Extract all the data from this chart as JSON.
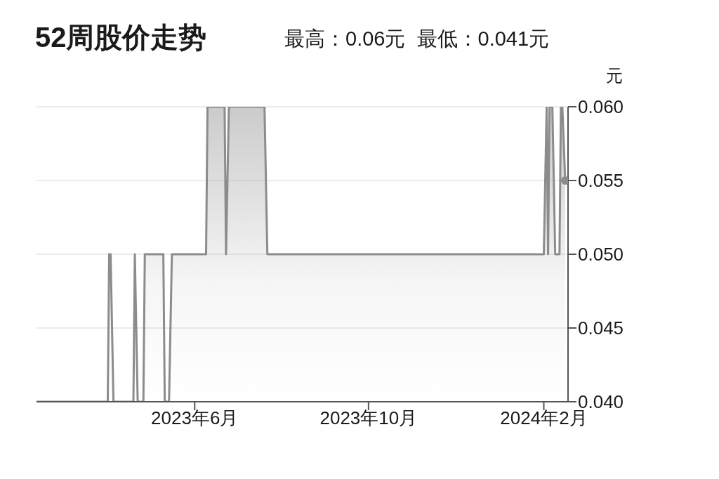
{
  "chart_data": {
    "type": "area",
    "title": "52周股价走势",
    "subtitle": "最高：0.06元  最低：0.041元",
    "ylabel": "元",
    "x": [
      "2023-02-10",
      "2023-04-01",
      "2023-04-02",
      "2023-04-03",
      "2023-04-05",
      "2023-04-19",
      "2023-04-20",
      "2023-04-22",
      "2023-04-26",
      "2023-04-27",
      "2023-05-10",
      "2023-05-11",
      "2023-05-14",
      "2023-05-16",
      "2023-06-09",
      "2023-06-10",
      "2023-06-22",
      "2023-06-23",
      "2023-06-25",
      "2023-07-20",
      "2023-07-22",
      "2024-02-01",
      "2024-02-03",
      "2024-02-04",
      "2024-02-05",
      "2024-02-07",
      "2024-02-09",
      "2024-02-12",
      "2024-02-13",
      "2024-02-14",
      "2024-02-16"
    ],
    "series": [
      {
        "color": "#8c8c8c",
        "values": [
          0.04,
          0.04,
          0.05,
          0.05,
          0.04,
          0.04,
          0.05,
          0.04,
          0.04,
          0.05,
          0.05,
          0.04,
          0.04,
          0.05,
          0.05,
          0.06,
          0.06,
          0.05,
          0.06,
          0.06,
          0.05,
          0.05,
          0.06,
          0.05,
          0.06,
          0.06,
          0.05,
          0.05,
          0.06,
          0.06,
          0.055
        ]
      }
    ],
    "xlim": [
      "2023-02-10",
      "2024-02-18"
    ],
    "xticks": [
      {
        "value": "2023-06",
        "label": "2023年6月"
      },
      {
        "value": "2023-10",
        "label": "2023年10月"
      },
      {
        "value": "2024-02",
        "label": "2024年2月"
      }
    ],
    "ylim": [
      0.04,
      0.06
    ],
    "yticks": [
      {
        "value": 0.04,
        "label": "0.040"
      },
      {
        "value": 0.045,
        "label": "0.045"
      },
      {
        "value": 0.05,
        "label": "0.050"
      },
      {
        "value": 0.055,
        "label": "0.055"
      },
      {
        "value": 0.06,
        "label": "0.060"
      }
    ],
    "grid": "y",
    "legend": false
  }
}
